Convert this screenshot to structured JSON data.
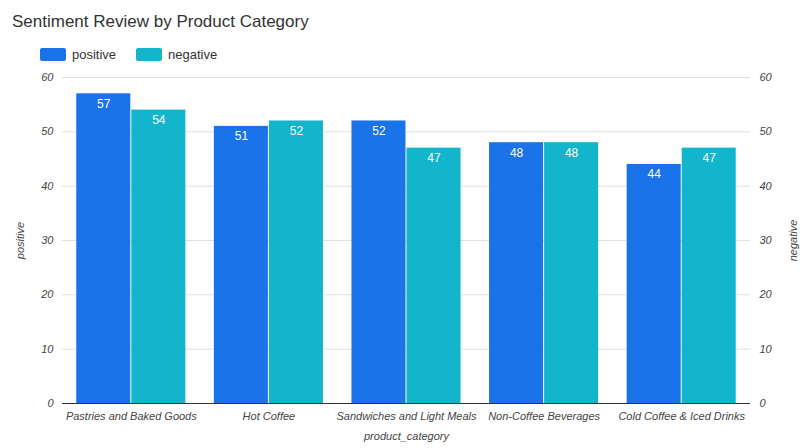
{
  "chart_data": {
    "type": "bar",
    "title": "Sentiment Review by Product Category",
    "x_label": "product_category",
    "y_label": "positive",
    "y2_label": "negative",
    "categories": [
      "Pastries and Baked Goods",
      "Hot Coffee",
      "Sandwiches and Light Meals",
      "Non-Coffee Beverages",
      "Cold Coffee & Iced Drinks"
    ],
    "series": [
      {
        "name": "positive",
        "color": "#1a73e8",
        "values": [
          57,
          51,
          52,
          48,
          44
        ]
      },
      {
        "name": "negative",
        "color": "#12b5cb",
        "values": [
          54,
          52,
          47,
          48,
          47
        ],
        "axis": "y2"
      }
    ],
    "ylim": [
      0,
      60
    ],
    "yticks": [
      0,
      10,
      20,
      30,
      40,
      50,
      60
    ],
    "y2lim": [
      0,
      60
    ],
    "y2ticks": [
      0,
      10,
      20,
      30,
      40,
      50,
      60
    ],
    "grid": true,
    "legend": "top-left",
    "data_labels": true
  }
}
